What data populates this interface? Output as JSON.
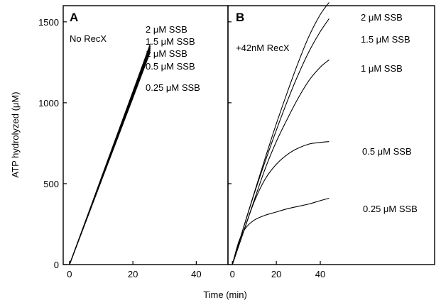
{
  "figure": {
    "ylabel": "ATP hydrolyzed (μM)",
    "xlabel": "Time (min)",
    "y_ticks": [
      "0",
      "500",
      "1000",
      "1500"
    ],
    "x_ticks": [
      "0",
      "20",
      "40"
    ]
  },
  "chart_data": [
    {
      "type": "line",
      "panel": "A",
      "condition": "No RecX",
      "xlim": [
        -2,
        50
      ],
      "ylim": [
        0,
        1600
      ],
      "xlabel": "Time (min)",
      "ylabel": "ATP hydrolyzed (μM)",
      "x_ticks": [
        0,
        20,
        40
      ],
      "y_ticks": [
        0,
        500,
        1000,
        1500
      ],
      "series": [
        {
          "name": "2 μM SSB",
          "x": [
            0,
            10,
            20,
            25.5
          ],
          "y": [
            0,
            535,
            1070,
            1365
          ]
        },
        {
          "name": "1.5 μM SSB",
          "x": [
            0,
            10,
            20,
            25.5
          ],
          "y": [
            0,
            530,
            1060,
            1352
          ]
        },
        {
          "name": "1 μM SSB",
          "x": [
            0,
            10,
            20,
            25.5
          ],
          "y": [
            0,
            525,
            1050,
            1340
          ]
        },
        {
          "name": "0.5 μM SSB",
          "x": [
            0,
            10,
            20,
            25.5
          ],
          "y": [
            0,
            520,
            1040,
            1328
          ]
        },
        {
          "name": "0.25 μM SSB",
          "x": [
            0,
            10,
            20,
            25.5
          ],
          "y": [
            0,
            515,
            1030,
            1315
          ]
        }
      ]
    },
    {
      "type": "line",
      "panel": "B",
      "condition": "+42nM RecX",
      "xlim": [
        -2,
        92
      ],
      "ylim": [
        0,
        1600
      ],
      "xlabel": "Time (min)",
      "ylabel": "ATP hydrolyzed (μM)",
      "x_ticks": [
        0,
        20,
        40
      ],
      "y_ticks": [
        0,
        500,
        1000,
        1500
      ],
      "series": [
        {
          "name": "2 μM SSB",
          "x": [
            0,
            5,
            10,
            15,
            20,
            25,
            30,
            35,
            40,
            44
          ],
          "y": [
            0,
            225,
            445,
            660,
            870,
            1065,
            1250,
            1415,
            1545,
            1620
          ]
        },
        {
          "name": "1.5 μM SSB",
          "x": [
            0,
            5,
            10,
            15,
            20,
            25,
            30,
            35,
            40,
            44
          ],
          "y": [
            0,
            225,
            440,
            640,
            830,
            1010,
            1175,
            1320,
            1440,
            1520
          ]
        },
        {
          "name": "1 μM SSB",
          "x": [
            0,
            5,
            10,
            15,
            20,
            25,
            30,
            35,
            40,
            44
          ],
          "y": [
            0,
            200,
            400,
            595,
            760,
            900,
            1030,
            1140,
            1220,
            1265
          ]
        },
        {
          "name": "0.5 μM SSB",
          "x": [
            0,
            5,
            10,
            15,
            20,
            25,
            30,
            35,
            40,
            44
          ],
          "y": [
            0,
            200,
            390,
            530,
            620,
            680,
            720,
            745,
            755,
            760
          ]
        },
        {
          "name": "0.25 μM SSB",
          "x": [
            0,
            3,
            6,
            10,
            15,
            20,
            25,
            30,
            35,
            40,
            44
          ],
          "y": [
            0,
            145,
            225,
            275,
            305,
            325,
            345,
            360,
            375,
            395,
            410
          ]
        }
      ]
    }
  ]
}
